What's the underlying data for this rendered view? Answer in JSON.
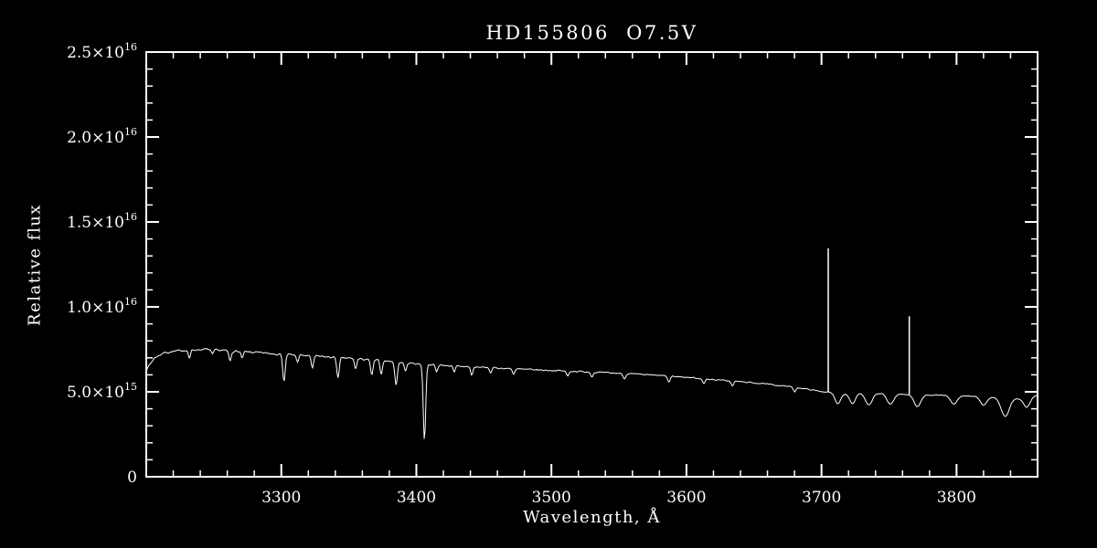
{
  "figure": {
    "bg": "#000000",
    "fg": "#ffffff"
  },
  "chart_data": {
    "type": "line",
    "title": "HD155806  O7.5V",
    "xlabel": "Wavelength, Å",
    "ylabel": "Relative flux",
    "xlim": [
      3200,
      3860
    ],
    "ylim": [
      0,
      2.5e+16
    ],
    "grid": false,
    "legend": "none",
    "x_ticks": [
      {
        "value": 3300,
        "label": "3300"
      },
      {
        "value": 3400,
        "label": "3400"
      },
      {
        "value": 3500,
        "label": "3500"
      },
      {
        "value": 3600,
        "label": "3600"
      },
      {
        "value": 3700,
        "label": "3700"
      },
      {
        "value": 3800,
        "label": "3800"
      }
    ],
    "x_minor_step": 20,
    "y_ticks": [
      {
        "value": 0,
        "base": "0",
        "exp": ""
      },
      {
        "value": 5000000000000000.0,
        "base": "5.0×10",
        "exp": "15"
      },
      {
        "value": 1e+16,
        "base": "1.0×10",
        "exp": "16"
      },
      {
        "value": 1.5e+16,
        "base": "1.5×10",
        "exp": "16"
      },
      {
        "value": 2e+16,
        "base": "2.0×10",
        "exp": "16"
      },
      {
        "value": 2.5e+16,
        "base": "2.5×10",
        "exp": "16"
      }
    ],
    "y_minor_step": 1000000000000000.0,
    "series_name": "HD155806 spectrum",
    "unit": 1000000000000000.0,
    "sample_step": 0.7,
    "continuum": [
      [
        3200,
        6.3
      ],
      [
        3206,
        7.0
      ],
      [
        3213,
        7.3
      ],
      [
        3228,
        7.45
      ],
      [
        3245,
        7.5
      ],
      [
        3262,
        7.4
      ],
      [
        3280,
        7.32
      ],
      [
        3300,
        7.22
      ],
      [
        3320,
        7.12
      ],
      [
        3340,
        7.02
      ],
      [
        3360,
        6.92
      ],
      [
        3380,
        6.8
      ],
      [
        3400,
        6.65
      ],
      [
        3420,
        6.56
      ],
      [
        3440,
        6.47
      ],
      [
        3460,
        6.4
      ],
      [
        3480,
        6.32
      ],
      [
        3500,
        6.26
      ],
      [
        3520,
        6.2
      ],
      [
        3540,
        6.12
      ],
      [
        3560,
        6.05
      ],
      [
        3580,
        5.96
      ],
      [
        3600,
        5.86
      ],
      [
        3620,
        5.72
      ],
      [
        3640,
        5.6
      ],
      [
        3660,
        5.45
      ],
      [
        3680,
        5.28
      ],
      [
        3700,
        5.02
      ],
      [
        3715,
        4.88
      ],
      [
        3730,
        4.92
      ],
      [
        3745,
        4.9
      ],
      [
        3760,
        4.86
      ],
      [
        3775,
        4.82
      ],
      [
        3790,
        4.8
      ],
      [
        3805,
        4.76
      ],
      [
        3820,
        4.72
      ],
      [
        3835,
        4.66
      ],
      [
        3846,
        4.6
      ],
      [
        3857,
        4.78
      ]
    ],
    "absorption_lines": [
      [
        3232,
        0.5,
        0.8
      ],
      [
        3249,
        0.3,
        0.8
      ],
      [
        3262,
        0.6,
        0.8
      ],
      [
        3271,
        0.4,
        0.8
      ],
      [
        3302,
        1.6,
        0.9
      ],
      [
        3312,
        0.4,
        0.8
      ],
      [
        3323,
        0.7,
        0.8
      ],
      [
        3342,
        1.2,
        0.9
      ],
      [
        3355,
        0.6,
        0.8
      ],
      [
        3367,
        0.9,
        0.9
      ],
      [
        3374,
        0.8,
        0.8
      ],
      [
        3385,
        1.4,
        0.9
      ],
      [
        3392,
        0.5,
        0.8
      ],
      [
        3406,
        4.5,
        0.9
      ],
      [
        3415,
        0.4,
        0.8
      ],
      [
        3428,
        0.4,
        0.8
      ],
      [
        3441,
        0.5,
        0.8
      ],
      [
        3455,
        0.3,
        0.8
      ],
      [
        3472,
        0.3,
        0.8
      ],
      [
        3512,
        0.3,
        0.9
      ],
      [
        3530,
        0.25,
        0.9
      ],
      [
        3554,
        0.3,
        0.9
      ],
      [
        3587,
        0.35,
        0.9
      ],
      [
        3613,
        0.3,
        0.9
      ],
      [
        3634,
        0.3,
        0.9
      ],
      [
        3680,
        0.3,
        0.9
      ],
      [
        3712,
        0.6,
        2
      ],
      [
        3723,
        0.6,
        2
      ],
      [
        3735,
        0.7,
        2.5
      ],
      [
        3751,
        0.6,
        2.5
      ],
      [
        3771,
        0.7,
        2.5
      ],
      [
        3798,
        0.5,
        2.5
      ],
      [
        3820,
        0.5,
        2.5
      ],
      [
        3836,
        1.1,
        3
      ],
      [
        3852,
        0.6,
        2.5
      ]
    ],
    "emission_lines": [
      {
        "x": 3705,
        "peak": 13.45
      },
      {
        "x": 3765,
        "peak": 9.45
      }
    ],
    "noise": {
      "seed": 7,
      "amp_left": 0.09,
      "amp_right": 0.025
    }
  }
}
